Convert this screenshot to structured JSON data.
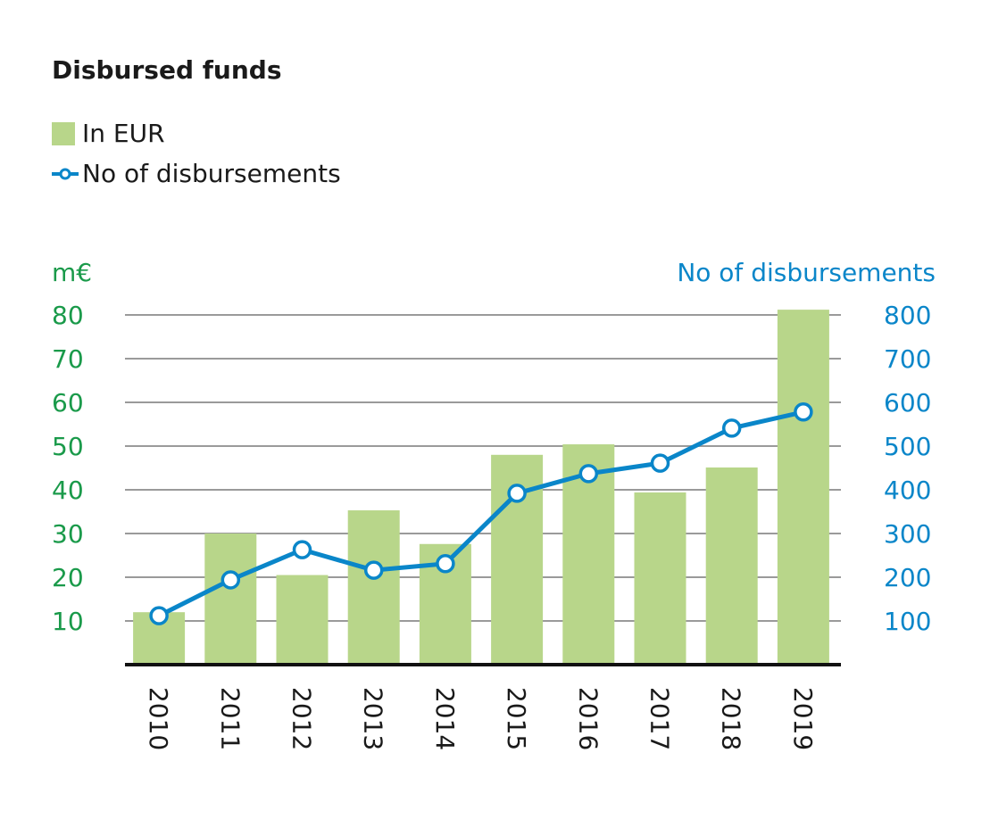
{
  "chart_data": {
    "type": "bar+line",
    "title": "Disbursed funds",
    "categories": [
      "2010",
      "2011",
      "2012",
      "2013",
      "2014",
      "2015",
      "2016",
      "2017",
      "2018",
      "2019"
    ],
    "series": [
      {
        "name": "In EUR",
        "type": "bar",
        "axis": "left",
        "color": "#b8d68a",
        "values": [
          12,
          30,
          20.5,
          35.3,
          27.6,
          48,
          50.4,
          39.4,
          45.1,
          81.2
        ]
      },
      {
        "name": "No of disbursements",
        "type": "line",
        "axis": "right",
        "color": "#0a86c9",
        "values": [
          112,
          194,
          263,
          216,
          231,
          392,
          437,
          461,
          541,
          578
        ]
      }
    ],
    "left_axis": {
      "label": "m€",
      "ylim": [
        0,
        80
      ],
      "ticks": [
        10,
        20,
        30,
        40,
        50,
        60,
        70,
        80
      ],
      "color": "#1a9a4a"
    },
    "right_axis": {
      "label": "No of disbursements",
      "ylim": [
        0,
        800
      ],
      "ticks": [
        100,
        200,
        300,
        400,
        500,
        600,
        700,
        800
      ],
      "color": "#0a86c9"
    },
    "grid": true,
    "legend_placement": "top-left"
  }
}
